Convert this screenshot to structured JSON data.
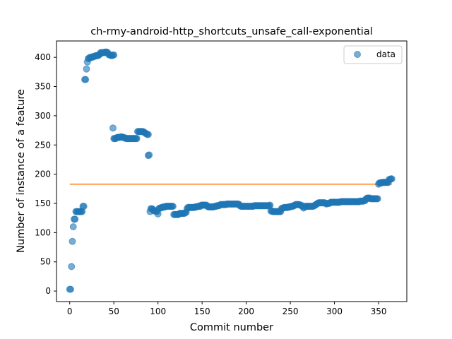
{
  "chart_data": {
    "type": "scatter",
    "title": "ch-rmy-android-http_shortcuts_unsafe_call-exponential",
    "xlabel": "Commit number",
    "ylabel": "Number of instance of a feature",
    "xlim": [
      -15,
      382
    ],
    "ylim": [
      -18,
      428
    ],
    "xticks": [
      0,
      50,
      100,
      150,
      200,
      250,
      300,
      350
    ],
    "yticks": [
      0,
      50,
      100,
      150,
      200,
      250,
      300,
      350,
      400
    ],
    "grid": false,
    "legend": {
      "placement": "top-right",
      "entries": [
        "data"
      ]
    },
    "colors": {
      "data": "#1f77b4",
      "fit": "#ff7f0e"
    },
    "fit_line": {
      "x": [
        0,
        365
      ],
      "y": [
        183,
        183
      ]
    },
    "series": [
      {
        "name": "data",
        "segments": [
          {
            "x": [
              0,
              1,
              2,
              3,
              4,
              5,
              6,
              7,
              8
            ],
            "y": [
              3,
              3,
              42,
              85,
              110,
              123,
              123,
              136,
              136
            ]
          },
          {
            "x": [
              9,
              10,
              11,
              12,
              13,
              14
            ],
            "y": [
              136,
              136,
              136,
              136,
              136,
              136
            ]
          },
          {
            "x": [
              15,
              16
            ],
            "y": [
              145,
              145
            ]
          },
          {
            "x": [
              17,
              18
            ],
            "y": [
              362,
              362
            ]
          },
          {
            "x": [
              19
            ],
            "y": [
              380
            ]
          },
          {
            "x": [
              20
            ],
            "y": [
              392
            ]
          },
          {
            "x": [
              21,
              22,
              23,
              24,
              25,
              26,
              27,
              28,
              29,
              30,
              31,
              32,
              33,
              34,
              35,
              36,
              37,
              38,
              39,
              40,
              41,
              42,
              43,
              44,
              45,
              46,
              47,
              48,
              49,
              50
            ],
            "y": [
              398,
              398,
              400,
              400,
              400,
              401,
              401,
              402,
              402,
              403,
              403,
              403,
              404,
              405,
              408,
              408,
              408,
              408,
              408,
              409,
              409,
              409,
              408,
              405,
              404,
              404,
              403,
              403,
              404,
              404
            ]
          },
          {
            "x": [
              49
            ],
            "y": [
              279
            ]
          },
          {
            "x": [
              50,
              51,
              52,
              53,
              54,
              55,
              56,
              57,
              58,
              59,
              60,
              61,
              62,
              63,
              64,
              65,
              66,
              67,
              68,
              69,
              70,
              71,
              72,
              73,
              74,
              75,
              76
            ],
            "y": [
              261,
              261,
              261,
              262,
              263,
              263,
              263,
              263,
              264,
              264,
              263,
              263,
              262,
              262,
              261,
              261,
              261,
              261,
              261,
              261,
              261,
              261,
              261,
              261,
              261,
              261,
              261
            ]
          },
          {
            "x": [
              77,
              78,
              79,
              80,
              81,
              82,
              83,
              84,
              85,
              86,
              87,
              88,
              89
            ],
            "y": [
              273,
              273,
              273,
              273,
              273,
              273,
              273,
              272,
              271,
              270,
              269,
              268,
              268
            ]
          },
          {
            "x": [
              89,
              90
            ],
            "y": [
              232,
              233
            ]
          },
          {
            "x": [
              91,
              92,
              93,
              94,
              95,
              96,
              97,
              98,
              99,
              100
            ],
            "y": [
              136,
              141,
              141,
              140,
              138,
              137,
              137,
              137,
              136,
              132
            ]
          },
          {
            "x": [
              101,
              102,
              103,
              104,
              105,
              106,
              107,
              108,
              109,
              110,
              111,
              112,
              113,
              114,
              115,
              116,
              117
            ],
            "y": [
              141,
              142,
              142,
              143,
              143,
              144,
              144,
              144,
              145,
              145,
              145,
              145,
              145,
              145,
              145,
              145,
              145
            ]
          },
          {
            "x": [
              118,
              119,
              120,
              121,
              122,
              123,
              124,
              125,
              126,
              127,
              128,
              129,
              130,
              131,
              132
            ],
            "y": [
              131,
              131,
              131,
              131,
              131,
              131,
              132,
              133,
              133,
              133,
              133,
              133,
              133,
              134,
              135
            ]
          },
          {
            "x": [
              133,
              134,
              135,
              136,
              137,
              138,
              139,
              140,
              141,
              142,
              143,
              144,
              145,
              146,
              147,
              148,
              149,
              150,
              151,
              152,
              153,
              154,
              155,
              156,
              157,
              158,
              159,
              160,
              161,
              162,
              163,
              164,
              165,
              166,
              167,
              168,
              169,
              170
            ],
            "y": [
              141,
              143,
              143,
              143,
              143,
              143,
              143,
              143,
              143,
              144,
              144,
              144,
              145,
              145,
              145,
              145,
              147,
              147,
              147,
              147,
              147,
              147,
              147,
              145,
              144,
              144,
              144,
              144,
              144,
              144,
              144,
              145,
              145,
              145,
              146,
              146,
              146,
              147
            ]
          },
          {
            "x": [
              171,
              172,
              173,
              174,
              175,
              176,
              177,
              178,
              179,
              180,
              181,
              182,
              183,
              184,
              185,
              186,
              187,
              188,
              189,
              190,
              191,
              192,
              193,
              194,
              195,
              196,
              197,
              198,
              199,
              200,
              201,
              202,
              203,
              204,
              205,
              206,
              207,
              208,
              209,
              210,
              211,
              212,
              213,
              214,
              215,
              216,
              217,
              218,
              219,
              220,
              221,
              222,
              223,
              224,
              225,
              226,
              227
            ],
            "y": [
              148,
              148,
              148,
              148,
              148,
              148,
              148,
              149,
              149,
              149,
              149,
              149,
              149,
              149,
              149,
              149,
              149,
              149,
              149,
              149,
              149,
              148,
              146,
              145,
              145,
              145,
              145,
              145,
              145,
              145,
              145,
              145,
              145,
              145,
              145,
              145,
              145,
              145,
              146,
              146,
              146,
              146,
              146,
              146,
              146,
              146,
              146,
              146,
              146,
              146,
              146,
              146,
              146,
              146,
              146,
              146,
              147
            ]
          },
          {
            "x": [
              228,
              229,
              230,
              231,
              232,
              233,
              234,
              235,
              236,
              237,
              238
            ],
            "y": [
              137,
              137,
              136,
              136,
              136,
              136,
              136,
              136,
              136,
              136,
              136
            ]
          },
          {
            "x": [
              239,
              240,
              241,
              242,
              243,
              244,
              245,
              246,
              247,
              248,
              249,
              250,
              251,
              252,
              253,
              254,
              255,
              256,
              257,
              258,
              259,
              260,
              261,
              262,
              263,
              264,
              265,
              266,
              267,
              268,
              269,
              270,
              271,
              272,
              273,
              274,
              275,
              276,
              277,
              278,
              279,
              280
            ],
            "y": [
              136,
              141,
              142,
              142,
              143,
              143,
              143,
              143,
              143,
              144,
              144,
              144,
              145,
              145,
              145,
              146,
              147,
              148,
              148,
              148,
              148,
              148,
              147,
              147,
              146,
              145,
              142,
              144,
              145,
              145,
              145,
              145,
              145,
              145,
              145,
              145,
              145,
              145,
              146,
              147,
              148,
              149
            ]
          },
          {
            "x": [
              281,
              282,
              283,
              284,
              285,
              286,
              287,
              288,
              289,
              290,
              291,
              292,
              293,
              294,
              295,
              296,
              297,
              298,
              299,
              300,
              301,
              302,
              303,
              304,
              305,
              306,
              307,
              308,
              309,
              310,
              311,
              312,
              313,
              314,
              315,
              316,
              317,
              318,
              319,
              320,
              321,
              322,
              323,
              324,
              325,
              326,
              327,
              328,
              329,
              330,
              331,
              332,
              333,
              334,
              335
            ],
            "y": [
              150,
              151,
              151,
              151,
              151,
              151,
              151,
              151,
              151,
              150,
              149,
              150,
              150,
              150,
              151,
              152,
              152,
              152,
              152,
              152,
              152,
              152,
              152,
              152,
              152,
              152,
              153,
              153,
              153,
              153,
              153,
              153,
              153,
              153,
              153,
              153,
              153,
              153,
              153,
              153,
              153,
              153,
              153,
              153,
              153,
              153,
              153,
              153,
              154,
              154,
              154,
              154,
              154,
              155,
              155
            ]
          },
          {
            "x": [
              336,
              337,
              338,
              339,
              340,
              341,
              342,
              343,
              344,
              345,
              346,
              347,
              348,
              349
            ],
            "y": [
              158,
              159,
              159,
              159,
              159,
              158,
              158,
              158,
              158,
              158,
              158,
              158,
              158,
              158
            ]
          },
          {
            "x": [
              350,
              351,
              352,
              353,
              354,
              355,
              356,
              357,
              358,
              359,
              360,
              361
            ],
            "y": [
              183,
              185,
              185,
              185,
              186,
              186,
              186,
              186,
              186,
              186,
              186,
              186
            ]
          },
          {
            "x": [
              362,
              363,
              364,
              365
            ],
            "y": [
              191,
              191,
              192,
              192
            ]
          }
        ]
      }
    ]
  }
}
